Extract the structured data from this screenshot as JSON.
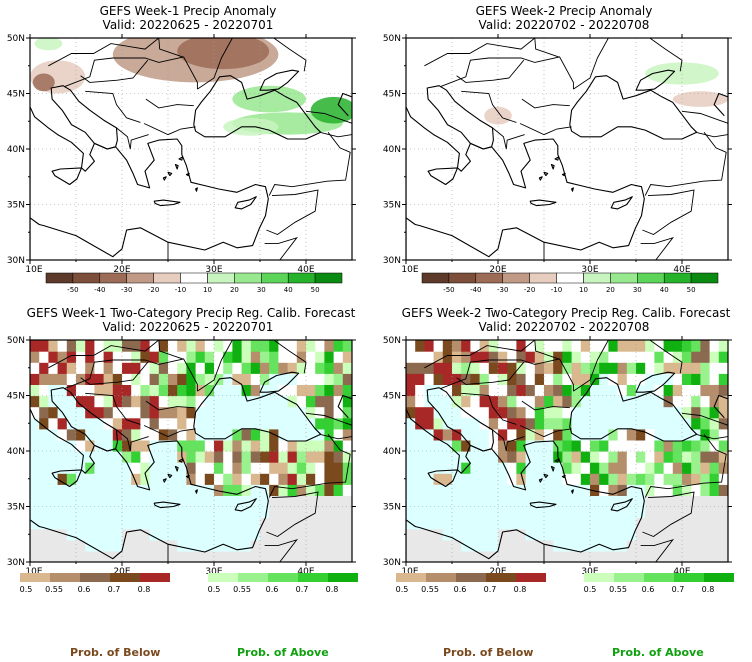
{
  "panels": [
    {
      "title": "GEFS Week-1 Precip Anomaly",
      "valid": "Valid: 20220625 - 20220701",
      "kind": "anom"
    },
    {
      "title": "GEFS Week-2 Precip Anomaly",
      "valid": "Valid: 20220702 - 20220708",
      "kind": "anom"
    },
    {
      "title": "GEFS Week-1 Two-Category Precip Reg. Calib. Forecast",
      "valid": "Valid: 20220625 - 20220701",
      "kind": "prob"
    },
    {
      "title": "GEFS Week-2 Two-Category Precip Reg. Calib. Forecast",
      "valid": "Valid: 20220702 - 20220708",
      "kind": "prob"
    }
  ],
  "axes": {
    "lat_labels": [
      "50N",
      "45N",
      "40N",
      "35N",
      "30N"
    ],
    "lon_labels": [
      "10E",
      "20E",
      "30E",
      "40E"
    ]
  },
  "anom_colorbar": {
    "labels": [
      "-50",
      "-40",
      "-30",
      "-20",
      "-10",
      "10",
      "20",
      "30",
      "40",
      "50"
    ],
    "colors": [
      "#5e3a2a",
      "#7d4f3a",
      "#9c6c57",
      "#c09a86",
      "#e6cdbf",
      "#ffffff",
      "#c8f4c0",
      "#98e890",
      "#5cd45a",
      "#26b22a",
      "#0a8a10"
    ]
  },
  "prob_colorbar": {
    "below_labels": [
      "0.5",
      "0.55",
      "0.6",
      "0.7",
      "0.8"
    ],
    "below_colors": [
      "#d9b88f",
      "#b58f6b",
      "#8b6a4f",
      "#7a4a1e",
      "#a82828"
    ],
    "above_labels": [
      "0.5",
      "0.55",
      "0.6",
      "0.7",
      "0.8"
    ],
    "above_colors": [
      "#ccffbb",
      "#99f28d",
      "#66e35e",
      "#33cf33",
      "#10b010"
    ]
  },
  "footer": {
    "below_label": "Prob. of Below",
    "above_label": "Prob. of Above",
    "below_color": "#7a4a1e",
    "above_color": "#10a010"
  },
  "colors": {
    "sea": "#dcffff",
    "land_gray": "#e8e8e8",
    "coast": "#000000"
  }
}
